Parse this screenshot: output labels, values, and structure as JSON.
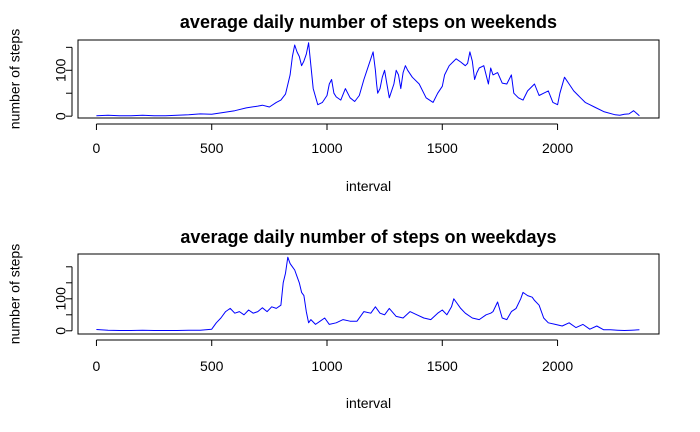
{
  "chart_data": [
    {
      "type": "line",
      "title": "average daily number of steps on weekends",
      "xlabel": "interval",
      "ylabel": "number of steps",
      "xlim": [
        -80,
        2440
      ],
      "ylim": [
        -4,
        166
      ],
      "xticks": [
        0,
        500,
        1000,
        1500,
        2000
      ],
      "yticks": [
        0,
        50,
        100,
        150
      ],
      "ytick_labels": [
        "0",
        "",
        "100",
        ""
      ],
      "color": "#0000ff",
      "series": [
        {
          "x": [
            0,
            50,
            100,
            150,
            200,
            250,
            300,
            350,
            400,
            450,
            500,
            550,
            600,
            650,
            700,
            720,
            750,
            780,
            800,
            820,
            840,
            850,
            860,
            870,
            880,
            890,
            900,
            910,
            920,
            930,
            940,
            960,
            980,
            1000,
            1010,
            1020,
            1030,
            1040,
            1060,
            1080,
            1100,
            1120,
            1140,
            1160,
            1180,
            1200,
            1210,
            1215,
            1220,
            1230,
            1240,
            1250,
            1260,
            1270,
            1290,
            1300,
            1310,
            1320,
            1330,
            1340,
            1350,
            1370,
            1400,
            1430,
            1460,
            1480,
            1500,
            1510,
            1530,
            1550,
            1560,
            1580,
            1600,
            1610,
            1620,
            1630,
            1640,
            1650,
            1660,
            1680,
            1700,
            1710,
            1720,
            1740,
            1760,
            1780,
            1800,
            1810,
            1830,
            1850,
            1870,
            1900,
            1920,
            1940,
            1960,
            1980,
            2000,
            2010,
            2030,
            2050,
            2070,
            2090,
            2100,
            2120,
            2140,
            2160,
            2200,
            2250,
            2270,
            2290,
            2310,
            2330,
            2355
          ],
          "y": [
            1,
            2,
            1,
            1,
            2,
            1,
            1,
            2,
            3,
            5,
            4,
            8,
            12,
            18,
            22,
            24,
            20,
            30,
            35,
            48,
            90,
            130,
            155,
            140,
            130,
            110,
            120,
            135,
            160,
            110,
            60,
            25,
            30,
            45,
            70,
            80,
            50,
            42,
            35,
            60,
            40,
            32,
            45,
            80,
            110,
            140,
            100,
            70,
            50,
            60,
            85,
            100,
            70,
            40,
            70,
            100,
            90,
            60,
            95,
            110,
            100,
            85,
            70,
            40,
            30,
            50,
            65,
            90,
            110,
            120,
            125,
            118,
            110,
            115,
            140,
            120,
            80,
            95,
            105,
            110,
            70,
            105,
            90,
            95,
            72,
            70,
            90,
            50,
            40,
            35,
            55,
            70,
            45,
            50,
            55,
            30,
            25,
            50,
            85,
            70,
            55,
            45,
            40,
            30,
            25,
            20,
            10,
            3,
            2,
            4,
            5,
            12,
            1
          ]
        }
      ]
    },
    {
      "type": "line",
      "title": "average daily number of steps on weekdays",
      "xlabel": "interval",
      "ylabel": "number of steps",
      "xlim": [
        -80,
        2440
      ],
      "ylim": [
        -10,
        240
      ],
      "xticks": [
        0,
        500,
        1000,
        1500,
        2000
      ],
      "yticks": [
        0,
        50,
        100,
        150,
        200
      ],
      "ytick_labels": [
        "0",
        "",
        "100",
        "",
        ""
      ],
      "color": "#0000ff",
      "series": [
        {
          "x": [
            0,
            50,
            100,
            150,
            200,
            250,
            300,
            350,
            400,
            450,
            500,
            520,
            540,
            560,
            580,
            600,
            620,
            640,
            660,
            680,
            700,
            720,
            740,
            760,
            780,
            800,
            810,
            820,
            830,
            840,
            850,
            860,
            870,
            880,
            890,
            900,
            910,
            920,
            930,
            950,
            970,
            990,
            1010,
            1040,
            1070,
            1100,
            1130,
            1160,
            1190,
            1210,
            1230,
            1250,
            1270,
            1300,
            1330,
            1360,
            1390,
            1420,
            1450,
            1480,
            1500,
            1520,
            1540,
            1550,
            1560,
            1580,
            1600,
            1630,
            1660,
            1690,
            1710,
            1720,
            1740,
            1760,
            1780,
            1800,
            1820,
            1840,
            1850,
            1870,
            1890,
            1900,
            1920,
            1940,
            1960,
            1990,
            2020,
            2050,
            2080,
            2110,
            2140,
            2170,
            2200,
            2230,
            2260,
            2290,
            2320,
            2355
          ],
          "y": [
            4,
            2,
            1,
            1,
            2,
            1,
            1,
            1,
            2,
            2,
            5,
            25,
            40,
            60,
            70,
            55,
            60,
            50,
            65,
            55,
            60,
            72,
            60,
            75,
            70,
            80,
            150,
            180,
            230,
            210,
            200,
            190,
            170,
            150,
            120,
            110,
            60,
            25,
            35,
            20,
            30,
            40,
            20,
            25,
            35,
            30,
            30,
            60,
            55,
            75,
            55,
            50,
            70,
            45,
            40,
            60,
            50,
            40,
            35,
            55,
            65,
            50,
            75,
            100,
            90,
            70,
            55,
            40,
            35,
            50,
            55,
            60,
            90,
            40,
            35,
            60,
            70,
            100,
            120,
            110,
            105,
            95,
            80,
            40,
            25,
            20,
            15,
            25,
            10,
            20,
            5,
            15,
            3,
            3,
            2,
            1,
            2,
            3
          ]
        }
      ]
    }
  ]
}
